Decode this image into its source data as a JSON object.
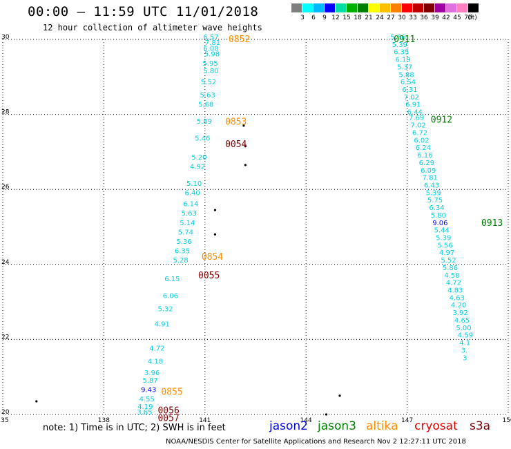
{
  "title": "00:00 – 11:59 UTC 11/01/2018",
  "subtitle": "12 hour collection of altimeter wave heights",
  "colorbar": {
    "labels": [
      "3",
      "6",
      "9",
      "12",
      "15",
      "18",
      "21",
      "24",
      "27",
      "30",
      "33",
      "36",
      "39",
      "42",
      "45",
      "70",
      "(ft)"
    ],
    "colors": [
      "#7f7f7f",
      "#00ffff",
      "#00b8ff",
      "#0000ff",
      "#00e0a0",
      "#00b000",
      "#008000",
      "#ffff00",
      "#ffc000",
      "#ff8000",
      "#ff0000",
      "#c00000",
      "#800000",
      "#a000a0",
      "#e070e0",
      "#ff80c0",
      "#000000"
    ]
  },
  "chart_data": {
    "type": "scatter",
    "xlim": [
      135,
      150
    ],
    "ylim": [
      20,
      30
    ],
    "xticks": [
      "135",
      "138",
      "141",
      "144",
      "147",
      "150"
    ],
    "yticks": [
      "20",
      "22",
      "24",
      "26",
      "28",
      "30"
    ],
    "grid": true,
    "pass_labels": [
      {
        "text": "0852",
        "lon": 141.7,
        "lat": 30.0,
        "color": "#ff8c00"
      },
      {
        "text": "0853",
        "lon": 141.6,
        "lat": 27.8,
        "color": "#ff8c00"
      },
      {
        "text": "0054",
        "lon": 141.6,
        "lat": 27.2,
        "color": "#800000"
      },
      {
        "text": "0854",
        "lon": 140.9,
        "lat": 24.2,
        "color": "#ff8c00"
      },
      {
        "text": "0055",
        "lon": 140.8,
        "lat": 23.7,
        "color": "#800000"
      },
      {
        "text": "0855",
        "lon": 139.7,
        "lat": 20.6,
        "color": "#ff8c00"
      },
      {
        "text": "0056",
        "lon": 139.6,
        "lat": 20.1,
        "color": "#800000"
      },
      {
        "text": "0057",
        "lon": 139.6,
        "lat": 19.9,
        "color": "#800000"
      },
      {
        "text": "0911",
        "lon": 146.6,
        "lat": 30.0,
        "color": "#008000"
      },
      {
        "text": "0912",
        "lon": 147.7,
        "lat": 27.85,
        "color": "#008000"
      },
      {
        "text": "0913",
        "lon": 149.2,
        "lat": 25.1,
        "color": "#008000"
      }
    ],
    "track_right": [
      {
        "v": "5.66",
        "lon": 146.5,
        "lat": 30.0
      },
      {
        "v": "5.39",
        "lon": 146.55,
        "lat": 29.8
      },
      {
        "v": "6.35",
        "lon": 146.6,
        "lat": 29.6
      },
      {
        "v": "6.19",
        "lon": 146.65,
        "lat": 29.4
      },
      {
        "v": "5.37",
        "lon": 146.7,
        "lat": 29.2
      },
      {
        "v": "5.88",
        "lon": 146.75,
        "lat": 29.0
      },
      {
        "v": "6.54",
        "lon": 146.8,
        "lat": 28.8
      },
      {
        "v": "6.31",
        "lon": 146.85,
        "lat": 28.6
      },
      {
        "v": "7.02",
        "lon": 146.9,
        "lat": 28.4
      },
      {
        "v": "6.91",
        "lon": 146.95,
        "lat": 28.2
      },
      {
        "v": "6.44",
        "lon": 147.0,
        "lat": 28.0
      },
      {
        "v": "7.69",
        "lon": 147.05,
        "lat": 27.85
      },
      {
        "v": "7.02",
        "lon": 147.1,
        "lat": 27.65
      },
      {
        "v": "6.72",
        "lon": 147.15,
        "lat": 27.45
      },
      {
        "v": "6.02",
        "lon": 147.2,
        "lat": 27.25
      },
      {
        "v": "6.24",
        "lon": 147.25,
        "lat": 27.05
      },
      {
        "v": "6.16",
        "lon": 147.3,
        "lat": 26.85
      },
      {
        "v": "6.29",
        "lon": 147.35,
        "lat": 26.65
      },
      {
        "v": "6.09",
        "lon": 147.4,
        "lat": 26.45
      },
      {
        "v": "7.81",
        "lon": 147.45,
        "lat": 26.25
      },
      {
        "v": "6.43",
        "lon": 147.5,
        "lat": 26.05
      },
      {
        "v": "5.39",
        "lon": 147.55,
        "lat": 25.85
      },
      {
        "v": "5.75",
        "lon": 147.6,
        "lat": 25.65
      },
      {
        "v": "6.34",
        "lon": 147.65,
        "lat": 25.45
      },
      {
        "v": "5.80",
        "lon": 147.7,
        "lat": 25.25
      },
      {
        "v": "9.06",
        "lon": 147.75,
        "lat": 25.05,
        "color": "#0000ff"
      },
      {
        "v": "5.44",
        "lon": 147.8,
        "lat": 24.85
      },
      {
        "v": "5.39",
        "lon": 147.85,
        "lat": 24.65
      },
      {
        "v": "5.56",
        "lon": 147.9,
        "lat": 24.45
      },
      {
        "v": "4.97",
        "lon": 147.95,
        "lat": 24.25
      },
      {
        "v": "5.52",
        "lon": 148.0,
        "lat": 24.05
      },
      {
        "v": "5.86",
        "lon": 148.05,
        "lat": 23.85
      },
      {
        "v": "4.58",
        "lon": 148.1,
        "lat": 23.65
      },
      {
        "v": "4.72",
        "lon": 148.15,
        "lat": 23.45
      },
      {
        "v": "4.83",
        "lon": 148.2,
        "lat": 23.25
      },
      {
        "v": "4.63",
        "lon": 148.25,
        "lat": 23.05
      },
      {
        "v": "4.20",
        "lon": 148.3,
        "lat": 22.85
      },
      {
        "v": "3.92",
        "lon": 148.35,
        "lat": 22.65
      },
      {
        "v": "4.65",
        "lon": 148.4,
        "lat": 22.45
      },
      {
        "v": "5.00",
        "lon": 148.45,
        "lat": 22.25
      },
      {
        "v": "4.59",
        "lon": 148.5,
        "lat": 22.05
      },
      {
        "v": "4.1",
        "lon": 148.55,
        "lat": 21.85
      },
      {
        "v": "3.",
        "lon": 148.6,
        "lat": 21.65
      },
      {
        "v": "3",
        "lon": 148.65,
        "lat": 21.45
      }
    ],
    "track_left_bold": [
      {
        "v": "6.57",
        "lon": 140.95,
        "lat": 30.0
      },
      {
        "v": "7.81",
        "lon": 141.0,
        "lat": 29.85
      },
      {
        "v": "6.08",
        "lon": 140.95,
        "lat": 29.7
      },
      {
        "v": "5.98",
        "lon": 140.98,
        "lat": 29.55
      },
      {
        "v": "5.95",
        "lon": 140.93,
        "lat": 29.3
      },
      {
        "v": "5.80",
        "lon": 140.95,
        "lat": 29.1
      },
      {
        "v": "5.52",
        "lon": 140.88,
        "lat": 28.8
      },
      {
        "v": "5.63",
        "lon": 140.85,
        "lat": 28.45
      },
      {
        "v": "5.68",
        "lon": 140.8,
        "lat": 28.2
      },
      {
        "v": "5.89",
        "lon": 140.75,
        "lat": 27.75
      },
      {
        "v": "5.46",
        "lon": 140.7,
        "lat": 27.3
      },
      {
        "v": "5.20",
        "lon": 140.6,
        "lat": 26.8
      },
      {
        "v": "4.92",
        "lon": 140.55,
        "lat": 26.55
      },
      {
        "v": "5.10",
        "lon": 140.45,
        "lat": 26.1
      },
      {
        "v": "6.40",
        "lon": 140.4,
        "lat": 25.85
      },
      {
        "v": "6.14",
        "lon": 140.35,
        "lat": 25.55
      },
      {
        "v": "5.63",
        "lon": 140.3,
        "lat": 25.3
      },
      {
        "v": "5.14",
        "lon": 140.25,
        "lat": 25.05
      },
      {
        "v": "5.74",
        "lon": 140.2,
        "lat": 24.8
      },
      {
        "v": "5.36",
        "lon": 140.15,
        "lat": 24.55
      },
      {
        "v": "6.35",
        "lon": 140.1,
        "lat": 24.3
      },
      {
        "v": "5.28",
        "lon": 140.05,
        "lat": 24.05
      },
      {
        "v": "6.15",
        "lon": 139.8,
        "lat": 23.55
      },
      {
        "v": "6.06",
        "lon": 139.75,
        "lat": 23.1
      },
      {
        "v": "5.32",
        "lon": 139.6,
        "lat": 22.75
      },
      {
        "v": "4.91",
        "lon": 139.5,
        "lat": 22.35
      },
      {
        "v": "4.72",
        "lon": 139.35,
        "lat": 21.7
      },
      {
        "v": "4.18",
        "lon": 139.3,
        "lat": 21.35
      },
      {
        "v": "3.96",
        "lon": 139.2,
        "lat": 21.05
      },
      {
        "v": "5.87",
        "lon": 139.15,
        "lat": 20.85
      },
      {
        "v": "9.43",
        "lon": 139.1,
        "lat": 20.6,
        "color": "#0000ff"
      },
      {
        "v": "4.55",
        "lon": 139.05,
        "lat": 20.35
      },
      {
        "v": "4.19",
        "lon": 139.0,
        "lat": 20.15
      },
      {
        "v": "3.65",
        "lon": 138.98,
        "lat": 20.0
      }
    ],
    "land_points": [
      {
        "lon": 142.15,
        "lat": 27.7
      },
      {
        "lon": 142.2,
        "lat": 27.15
      },
      {
        "lon": 142.2,
        "lat": 26.65
      },
      {
        "lon": 141.3,
        "lat": 25.45
      },
      {
        "lon": 141.3,
        "lat": 24.8
      },
      {
        "lon": 145.0,
        "lat": 20.5
      },
      {
        "lon": 136.0,
        "lat": 20.35
      },
      {
        "lon": 144.6,
        "lat": 20.0
      }
    ]
  },
  "footer": {
    "note": "note: 1) Time is in UTC; 2) SWH is in feet",
    "legend": [
      {
        "name": "jason2",
        "color": "#0000dd"
      },
      {
        "name": "jason3",
        "color": "#008000"
      },
      {
        "name": "altika",
        "color": "#ff8c00"
      },
      {
        "name": "cryosat",
        "color": "#e00000"
      },
      {
        "name": "s3a",
        "color": "#800000"
      }
    ],
    "credit": "NOAA/NESDIS Center for Satellite Applications and Research    Nov  2 12:27:11 UTC 2018"
  }
}
